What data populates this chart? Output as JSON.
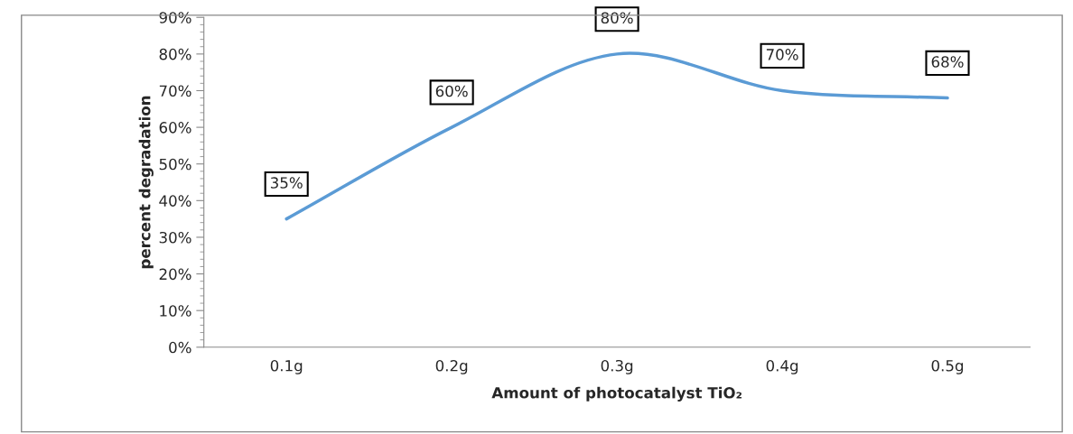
{
  "chart_data": {
    "type": "line",
    "xlabel": "Amount of photocatalyst TiO₂",
    "ylabel": "percent degradation",
    "categories": [
      "0.1g",
      "0.2g",
      "0.3g",
      "0.4g",
      "0.5g"
    ],
    "series": [
      {
        "color": "#5b9bd5",
        "values": [
          35,
          60,
          80,
          70,
          68
        ],
        "value_labels": [
          "35%",
          "60%",
          "80%",
          "70%",
          "68%"
        ]
      }
    ],
    "ylim": [
      0,
      90
    ],
    "yticks": [
      {
        "value": 0,
        "label": "0%"
      },
      {
        "value": 10,
        "label": "10%"
      },
      {
        "value": 20,
        "label": "20%"
      },
      {
        "value": 30,
        "label": "30%"
      },
      {
        "value": 40,
        "label": "40%"
      },
      {
        "value": 50,
        "label": "50%"
      },
      {
        "value": 60,
        "label": "60%"
      },
      {
        "value": 70,
        "label": "70%"
      },
      {
        "value": 80,
        "label": "80%"
      },
      {
        "value": 90,
        "label": "90%"
      }
    ],
    "grid": false,
    "legend": false,
    "marker": "none",
    "line_style": "solid"
  }
}
